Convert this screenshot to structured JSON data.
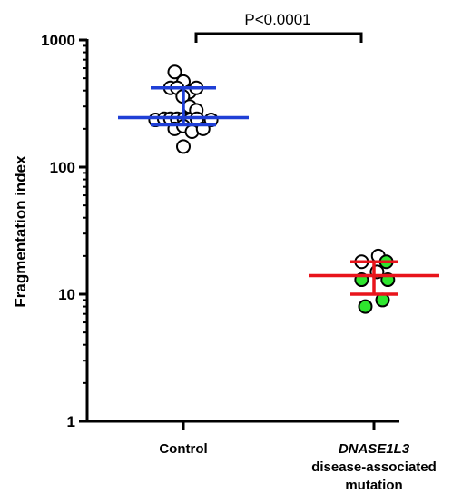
{
  "chart_data": {
    "type": "scatter",
    "ylabel": "Fragmentation index",
    "yscale": "log",
    "ylim": [
      1,
      1000
    ],
    "yticks": [
      "1",
      "10",
      "100",
      "1000"
    ],
    "categories": [
      {
        "lines": [
          "Control"
        ],
        "italic_first": false
      },
      {
        "lines": [
          "DNASE1L3",
          "disease-associated",
          "mutation"
        ],
        "italic_first": true
      }
    ],
    "annotation": "P<0.0001",
    "colors": {
      "control_line": "#1f3fd6",
      "mutation_line": "#e8141b",
      "green_point": "#2ee52e",
      "open_point": "#ffffff"
    },
    "series": [
      {
        "category": "Control",
        "median": 245,
        "q1": 215,
        "q3": 420,
        "points": [
          {
            "y": 560,
            "x_offset": -0.28,
            "fill": "white"
          },
          {
            "y": 470,
            "x_offset": 0.0,
            "fill": "white"
          },
          {
            "y": 420,
            "x_offset": -0.42,
            "fill": "white"
          },
          {
            "y": 420,
            "x_offset": -0.2,
            "fill": "white"
          },
          {
            "y": 390,
            "x_offset": 0.2,
            "fill": "white"
          },
          {
            "y": 420,
            "x_offset": 0.42,
            "fill": "white"
          },
          {
            "y": 360,
            "x_offset": -0.02,
            "fill": "white"
          },
          {
            "y": 300,
            "x_offset": 0.2,
            "fill": "white"
          },
          {
            "y": 280,
            "x_offset": 0.42,
            "fill": "white"
          },
          {
            "y": 235,
            "x_offset": -0.9,
            "fill": "white"
          },
          {
            "y": 240,
            "x_offset": -0.62,
            "fill": "white"
          },
          {
            "y": 240,
            "x_offset": -0.42,
            "fill": "white"
          },
          {
            "y": 240,
            "x_offset": -0.2,
            "fill": "white"
          },
          {
            "y": 240,
            "x_offset": 0.02,
            "fill": "white"
          },
          {
            "y": 235,
            "x_offset": 0.22,
            "fill": "white"
          },
          {
            "y": 240,
            "x_offset": 0.44,
            "fill": "white"
          },
          {
            "y": 235,
            "x_offset": 0.9,
            "fill": "white"
          },
          {
            "y": 200,
            "x_offset": -0.28,
            "fill": "white"
          },
          {
            "y": 210,
            "x_offset": 0.0,
            "fill": "white"
          },
          {
            "y": 190,
            "x_offset": 0.28,
            "fill": "white"
          },
          {
            "y": 200,
            "x_offset": 0.64,
            "fill": "white"
          },
          {
            "y": 145,
            "x_offset": 0.0,
            "fill": "white"
          }
        ]
      },
      {
        "category": "DNASE1L3 disease-associated mutation",
        "median": 14,
        "q1": 10,
        "q3": 18,
        "points": [
          {
            "y": 20,
            "x_offset": 0.14,
            "fill": "white"
          },
          {
            "y": 18,
            "x_offset": -0.4,
            "fill": "white"
          },
          {
            "y": 18,
            "x_offset": 0.4,
            "fill": "green"
          },
          {
            "y": 15,
            "x_offset": 0.1,
            "fill": "white"
          },
          {
            "y": 13,
            "x_offset": -0.4,
            "fill": "green"
          },
          {
            "y": 13,
            "x_offset": 0.45,
            "fill": "green"
          },
          {
            "y": 9,
            "x_offset": 0.28,
            "fill": "green"
          },
          {
            "y": 8,
            "x_offset": -0.28,
            "fill": "green"
          }
        ]
      }
    ]
  }
}
